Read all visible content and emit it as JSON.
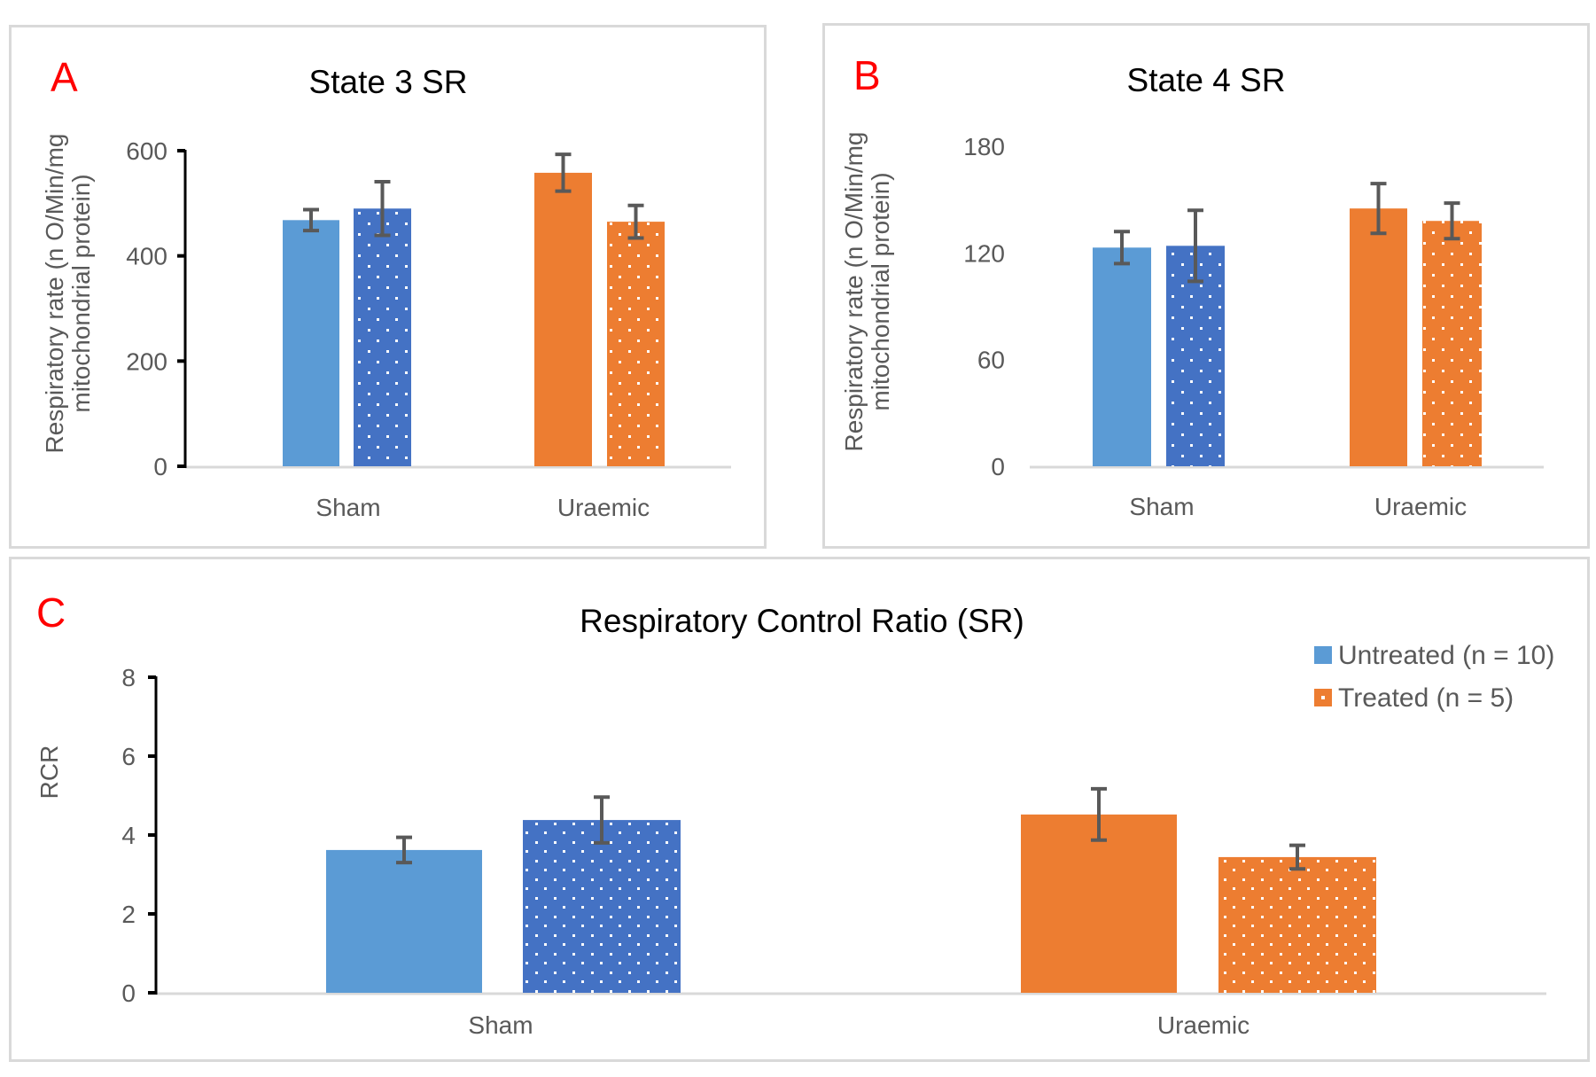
{
  "colors": {
    "sham_untreated": "#5b9bd5",
    "sham_treated": "#4472c4",
    "uraemic_untreated": "#ed7d31",
    "uraemic_treated": "#ed7d31",
    "error_bar": "#595959",
    "panel_letter": "#ff0000",
    "axis_line": "#000000",
    "baseline": "#d9d9d9"
  },
  "legend": {
    "items": [
      {
        "label": "Untreated (n = 10)",
        "swatch": "solid",
        "color": "#5b9bd5"
      },
      {
        "label": "Treated (n = 5)",
        "swatch": "dotted",
        "color": "#ed7d31"
      }
    ],
    "placement": "top-right of panel C"
  },
  "chart_data": [
    {
      "panel": "A",
      "type": "bar",
      "title": "State 3 SR",
      "ylabel": "Respiratory rate (n O/Min/mg mitochondrial protein)",
      "ylabel_lines": [
        "Respiratory rate (n O/Min/mg",
        "mitochondrial protein)"
      ],
      "xlabel": "",
      "ylim": [
        0,
        600
      ],
      "yticks": [
        0,
        200,
        400,
        600
      ],
      "ytick_labels": [
        "0",
        "200",
        "400",
        "600"
      ],
      "categories": [
        "Sham",
        "Uraemic"
      ],
      "series": [
        {
          "name": "Untreated",
          "values": [
            468,
            558
          ],
          "errors": [
            20,
            35
          ]
        },
        {
          "name": "Treated",
          "values": [
            490,
            465
          ],
          "errors": [
            51,
            31
          ]
        }
      ],
      "grid": false
    },
    {
      "panel": "B",
      "type": "bar",
      "title": "State 4 SR",
      "ylabel": "Respiratory rate (n O/Min/mg mitochondrial protein)",
      "ylabel_lines": [
        "Respiratory rate (n O/Min/mg",
        "mitochondrial protein)"
      ],
      "xlabel": "",
      "ylim": [
        0,
        180
      ],
      "yticks": [
        0,
        60,
        120,
        180
      ],
      "ytick_labels": [
        "0",
        "60",
        "120",
        "180"
      ],
      "categories": [
        "Sham",
        "Uraemic"
      ],
      "series": [
        {
          "name": "Untreated",
          "values": [
            123,
            145
          ],
          "errors": [
            9,
            14
          ]
        },
        {
          "name": "Treated",
          "values": [
            124,
            138
          ],
          "errors": [
            20,
            10
          ]
        }
      ],
      "grid": false
    },
    {
      "panel": "C",
      "type": "bar",
      "title": "Respiratory Control Ratio (SR)",
      "ylabel": "RCR",
      "ylabel_lines": [
        "RCR"
      ],
      "xlabel": "",
      "ylim": [
        0,
        8
      ],
      "yticks": [
        0,
        2,
        4,
        6,
        8
      ],
      "ytick_labels": [
        "0",
        "2",
        "4",
        "6",
        "8"
      ],
      "categories": [
        "Sham",
        "Uraemic"
      ],
      "series": [
        {
          "name": "Untreated (n = 10)",
          "values": [
            3.62,
            4.52
          ],
          "errors": [
            0.32,
            0.65
          ]
        },
        {
          "name": "Treated (n = 5)",
          "values": [
            4.38,
            3.44
          ],
          "errors": [
            0.58,
            0.3
          ]
        }
      ],
      "legend": [
        "Untreated (n = 10)",
        "Treated (n = 5)"
      ],
      "legend_position": "top-right",
      "grid": false
    }
  ]
}
